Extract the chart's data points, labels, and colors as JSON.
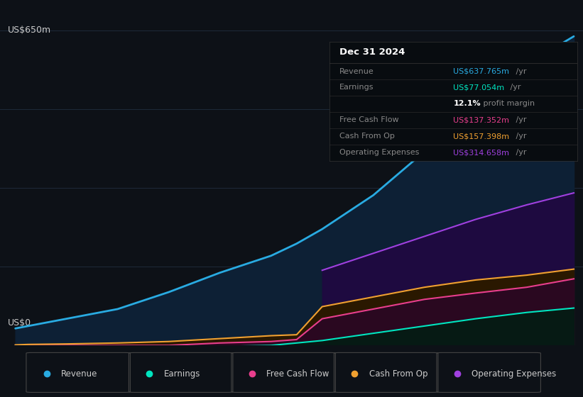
{
  "bg_color": "#0d1117",
  "plot_bg_color": "#0d1117",
  "ylabel_text": "US$650m",
  "ylabel0_text": "US$0",
  "x_years": [
    2014.0,
    2014.25,
    2015.0,
    2016.0,
    2017.0,
    2018.0,
    2019.0,
    2019.5,
    2020.0,
    2021.0,
    2022.0,
    2023.0,
    2024.0,
    2024.92
  ],
  "revenue": [
    35,
    40,
    55,
    75,
    110,
    150,
    185,
    210,
    240,
    310,
    400,
    490,
    580,
    637.765
  ],
  "earnings": [
    -2,
    -3,
    -5,
    -8,
    -5,
    -2,
    0,
    5,
    10,
    25,
    40,
    55,
    68,
    77.054
  ],
  "free_cash_flow": [
    0,
    0,
    0,
    0,
    0,
    5,
    8,
    12,
    55,
    75,
    95,
    108,
    120,
    137.352
  ],
  "cash_from_op": [
    1,
    2,
    3,
    5,
    8,
    14,
    20,
    22,
    80,
    100,
    120,
    135,
    145,
    157.398
  ],
  "op_expenses": [
    0,
    0,
    0,
    0,
    0,
    0,
    0,
    0,
    155,
    190,
    225,
    260,
    290,
    314.658
  ],
  "revenue_color": "#29abe2",
  "earnings_color": "#00e5c0",
  "free_cash_flow_color": "#e83e8c",
  "cash_from_op_color": "#f0a030",
  "op_expenses_color": "#a040e0",
  "info_box": {
    "title": "Dec 31 2024",
    "rows": [
      {
        "label": "Revenue",
        "value": "US$637.765m",
        "unit": "/yr",
        "color": "#29abe2"
      },
      {
        "label": "Earnings",
        "value": "US$77.054m",
        "unit": "/yr",
        "color": "#00e5c0"
      },
      {
        "label": "",
        "value": "12.1%",
        "unit": "profit margin",
        "color": "#ffffff",
        "bold_value": true
      },
      {
        "label": "Free Cash Flow",
        "value": "US$137.352m",
        "unit": "/yr",
        "color": "#e83e8c"
      },
      {
        "label": "Cash From Op",
        "value": "US$157.398m",
        "unit": "/yr",
        "color": "#f0a030"
      },
      {
        "label": "Operating Expenses",
        "value": "US$314.658m",
        "unit": "/yr",
        "color": "#a040e0"
      }
    ]
  },
  "legend_items": [
    {
      "label": "Revenue",
      "color": "#29abe2"
    },
    {
      "label": "Earnings",
      "color": "#00e5c0"
    },
    {
      "label": "Free Cash Flow",
      "color": "#e83e8c"
    },
    {
      "label": "Cash From Op",
      "color": "#f0a030"
    },
    {
      "label": "Operating Expenses",
      "color": "#a040e0"
    }
  ]
}
